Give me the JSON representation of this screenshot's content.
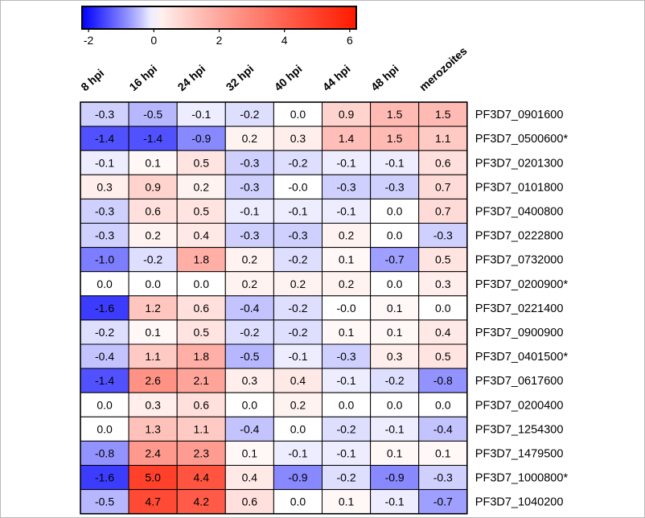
{
  "chart_data": {
    "type": "heatmap",
    "colorbar": {
      "min": -2.2,
      "max": 6.2,
      "ticks": [
        -2,
        0,
        2,
        4,
        6
      ],
      "tick_labels": [
        "-2",
        "0",
        "2",
        "4",
        "6"
      ],
      "colors": {
        "low": "#0000ff",
        "mid": "#ffffff",
        "high": "#ff1a00"
      }
    },
    "columns": [
      "8 hpi",
      "16 hpi",
      "24 hpi",
      "32 hpi",
      "40 hpi",
      "44 hpi",
      "48 hpi",
      "merozoites"
    ],
    "rows": [
      {
        "label": "PF3D7_0901600",
        "values": [
          "-0.3",
          "-0.5",
          "-0.1",
          "-0.2",
          "0.0",
          "0.9",
          "1.5",
          "1.5"
        ]
      },
      {
        "label": "PF3D7_0500600*",
        "values": [
          "-1.4",
          "-1.4",
          "-0.9",
          "0.2",
          "0.3",
          "1.4",
          "1.5",
          "1.1"
        ]
      },
      {
        "label": "PF3D7_0201300",
        "values": [
          "-0.1",
          "0.1",
          "0.5",
          "-0.3",
          "-0.2",
          "-0.1",
          "-0.1",
          "0.6"
        ]
      },
      {
        "label": "PF3D7_0101800",
        "values": [
          "0.3",
          "0.9",
          "0.2",
          "-0.3",
          "-0.0",
          "-0.3",
          "-0.3",
          "0.7"
        ]
      },
      {
        "label": "PF3D7_0400800",
        "values": [
          "-0.3",
          "0.6",
          "0.5",
          "-0.1",
          "-0.1",
          "-0.1",
          "0.0",
          "0.7"
        ]
      },
      {
        "label": "PF3D7_0222800",
        "values": [
          "-0.3",
          "0.2",
          "0.4",
          "-0.3",
          "-0.3",
          "0.2",
          "0.0",
          "-0.3"
        ]
      },
      {
        "label": "PF3D7_0732000",
        "values": [
          "-1.0",
          "-0.2",
          "1.8",
          "0.2",
          "-0.2",
          "0.1",
          "-0.7",
          "0.5"
        ]
      },
      {
        "label": "PF3D7_0200900*",
        "values": [
          "0.0",
          "0.0",
          "0.0",
          "0.2",
          "0.2",
          "0.2",
          "0.0",
          "0.3"
        ]
      },
      {
        "label": "PF3D7_0221400",
        "values": [
          "-1.6",
          "1.2",
          "0.6",
          "-0.4",
          "-0.2",
          "-0.0",
          "0.1",
          "0.0"
        ]
      },
      {
        "label": "PF3D7_0900900",
        "values": [
          "-0.2",
          "0.1",
          "0.5",
          "-0.2",
          "-0.2",
          "0.1",
          "0.1",
          "0.4"
        ]
      },
      {
        "label": "PF3D7_0401500*",
        "values": [
          "-0.4",
          "1.1",
          "1.8",
          "-0.5",
          "-0.1",
          "-0.3",
          "0.3",
          "0.5"
        ]
      },
      {
        "label": "PF3D7_0617600",
        "values": [
          "-1.4",
          "2.6",
          "2.1",
          "0.3",
          "0.4",
          "-0.1",
          "-0.2",
          "-0.8"
        ]
      },
      {
        "label": "PF3D7_0200400",
        "values": [
          "0.0",
          "0.3",
          "0.6",
          "0.0",
          "0.2",
          "0.0",
          "0.0",
          "0.0"
        ]
      },
      {
        "label": "PF3D7_1254300",
        "values": [
          "0.0",
          "1.3",
          "1.1",
          "-0.4",
          "0.0",
          "-0.2",
          "-0.1",
          "-0.4"
        ]
      },
      {
        "label": "PF3D7_1479500",
        "values": [
          "-0.8",
          "2.4",
          "2.3",
          "0.1",
          "-0.1",
          "-0.1",
          "0.1",
          "0.1"
        ]
      },
      {
        "label": "PF3D7_1000800*",
        "values": [
          "-1.6",
          "5.0",
          "4.4",
          "0.4",
          "-0.9",
          "-0.2",
          "-0.9",
          "-0.3"
        ]
      },
      {
        "label": "PF3D7_1040200",
        "values": [
          "-0.5",
          "4.7",
          "4.2",
          "0.6",
          "0.0",
          "0.1",
          "-0.1",
          "-0.7"
        ]
      }
    ]
  }
}
